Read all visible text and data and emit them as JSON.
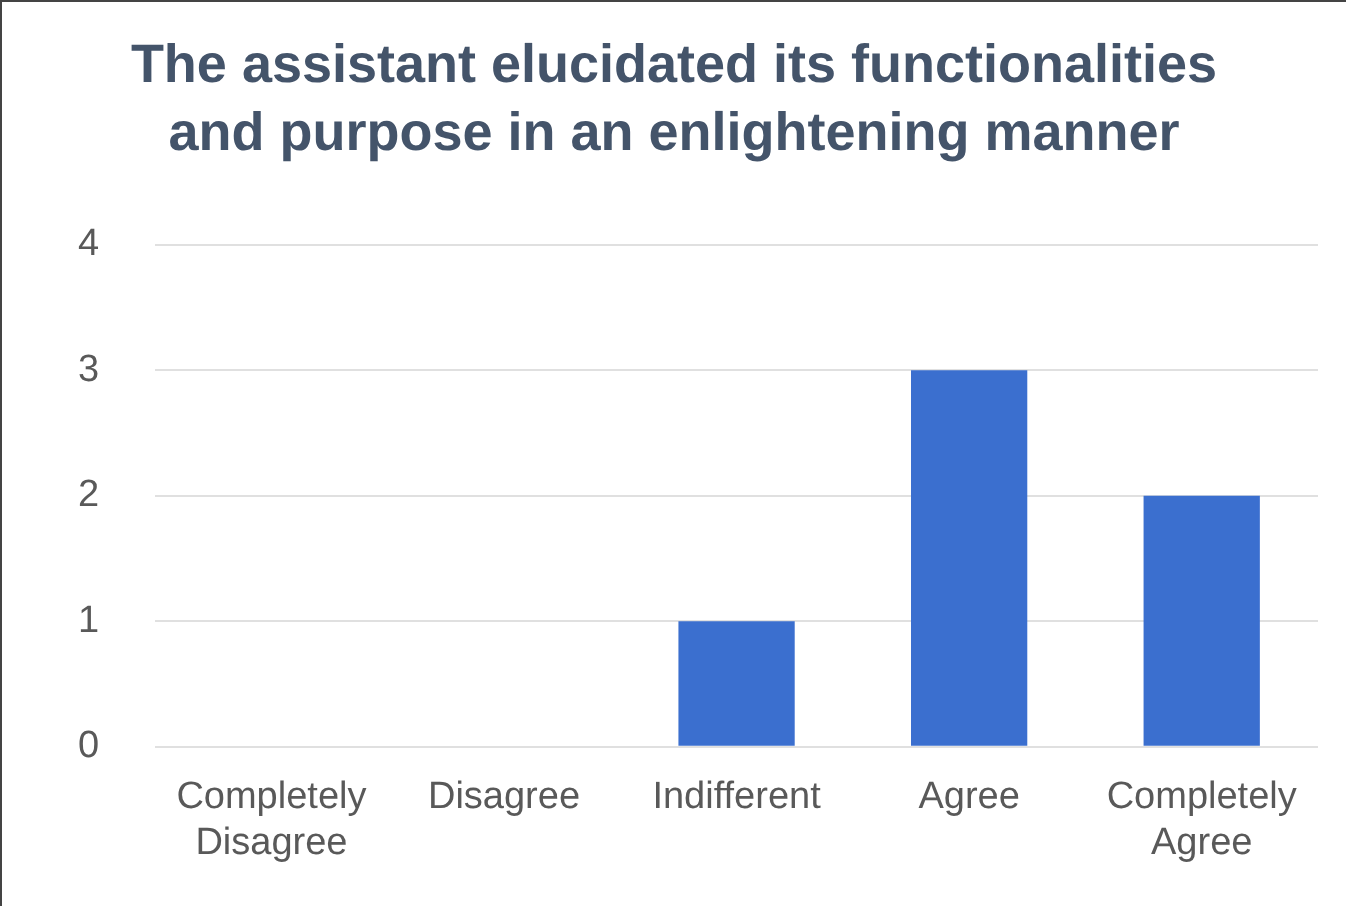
{
  "chart_data": {
    "type": "bar",
    "title": "The assistant elucidated its functionalities and purpose in an enlightening manner",
    "categories": [
      "Completely Disagree",
      "Disagree",
      "Indifferent",
      "Agree",
      "Completely Agree"
    ],
    "values": [
      0,
      0,
      1,
      3,
      2
    ],
    "color": "#3b6fcf",
    "ylim": [
      0,
      4
    ],
    "yticks": [
      0,
      1,
      2,
      3,
      4
    ],
    "grid": "y"
  }
}
